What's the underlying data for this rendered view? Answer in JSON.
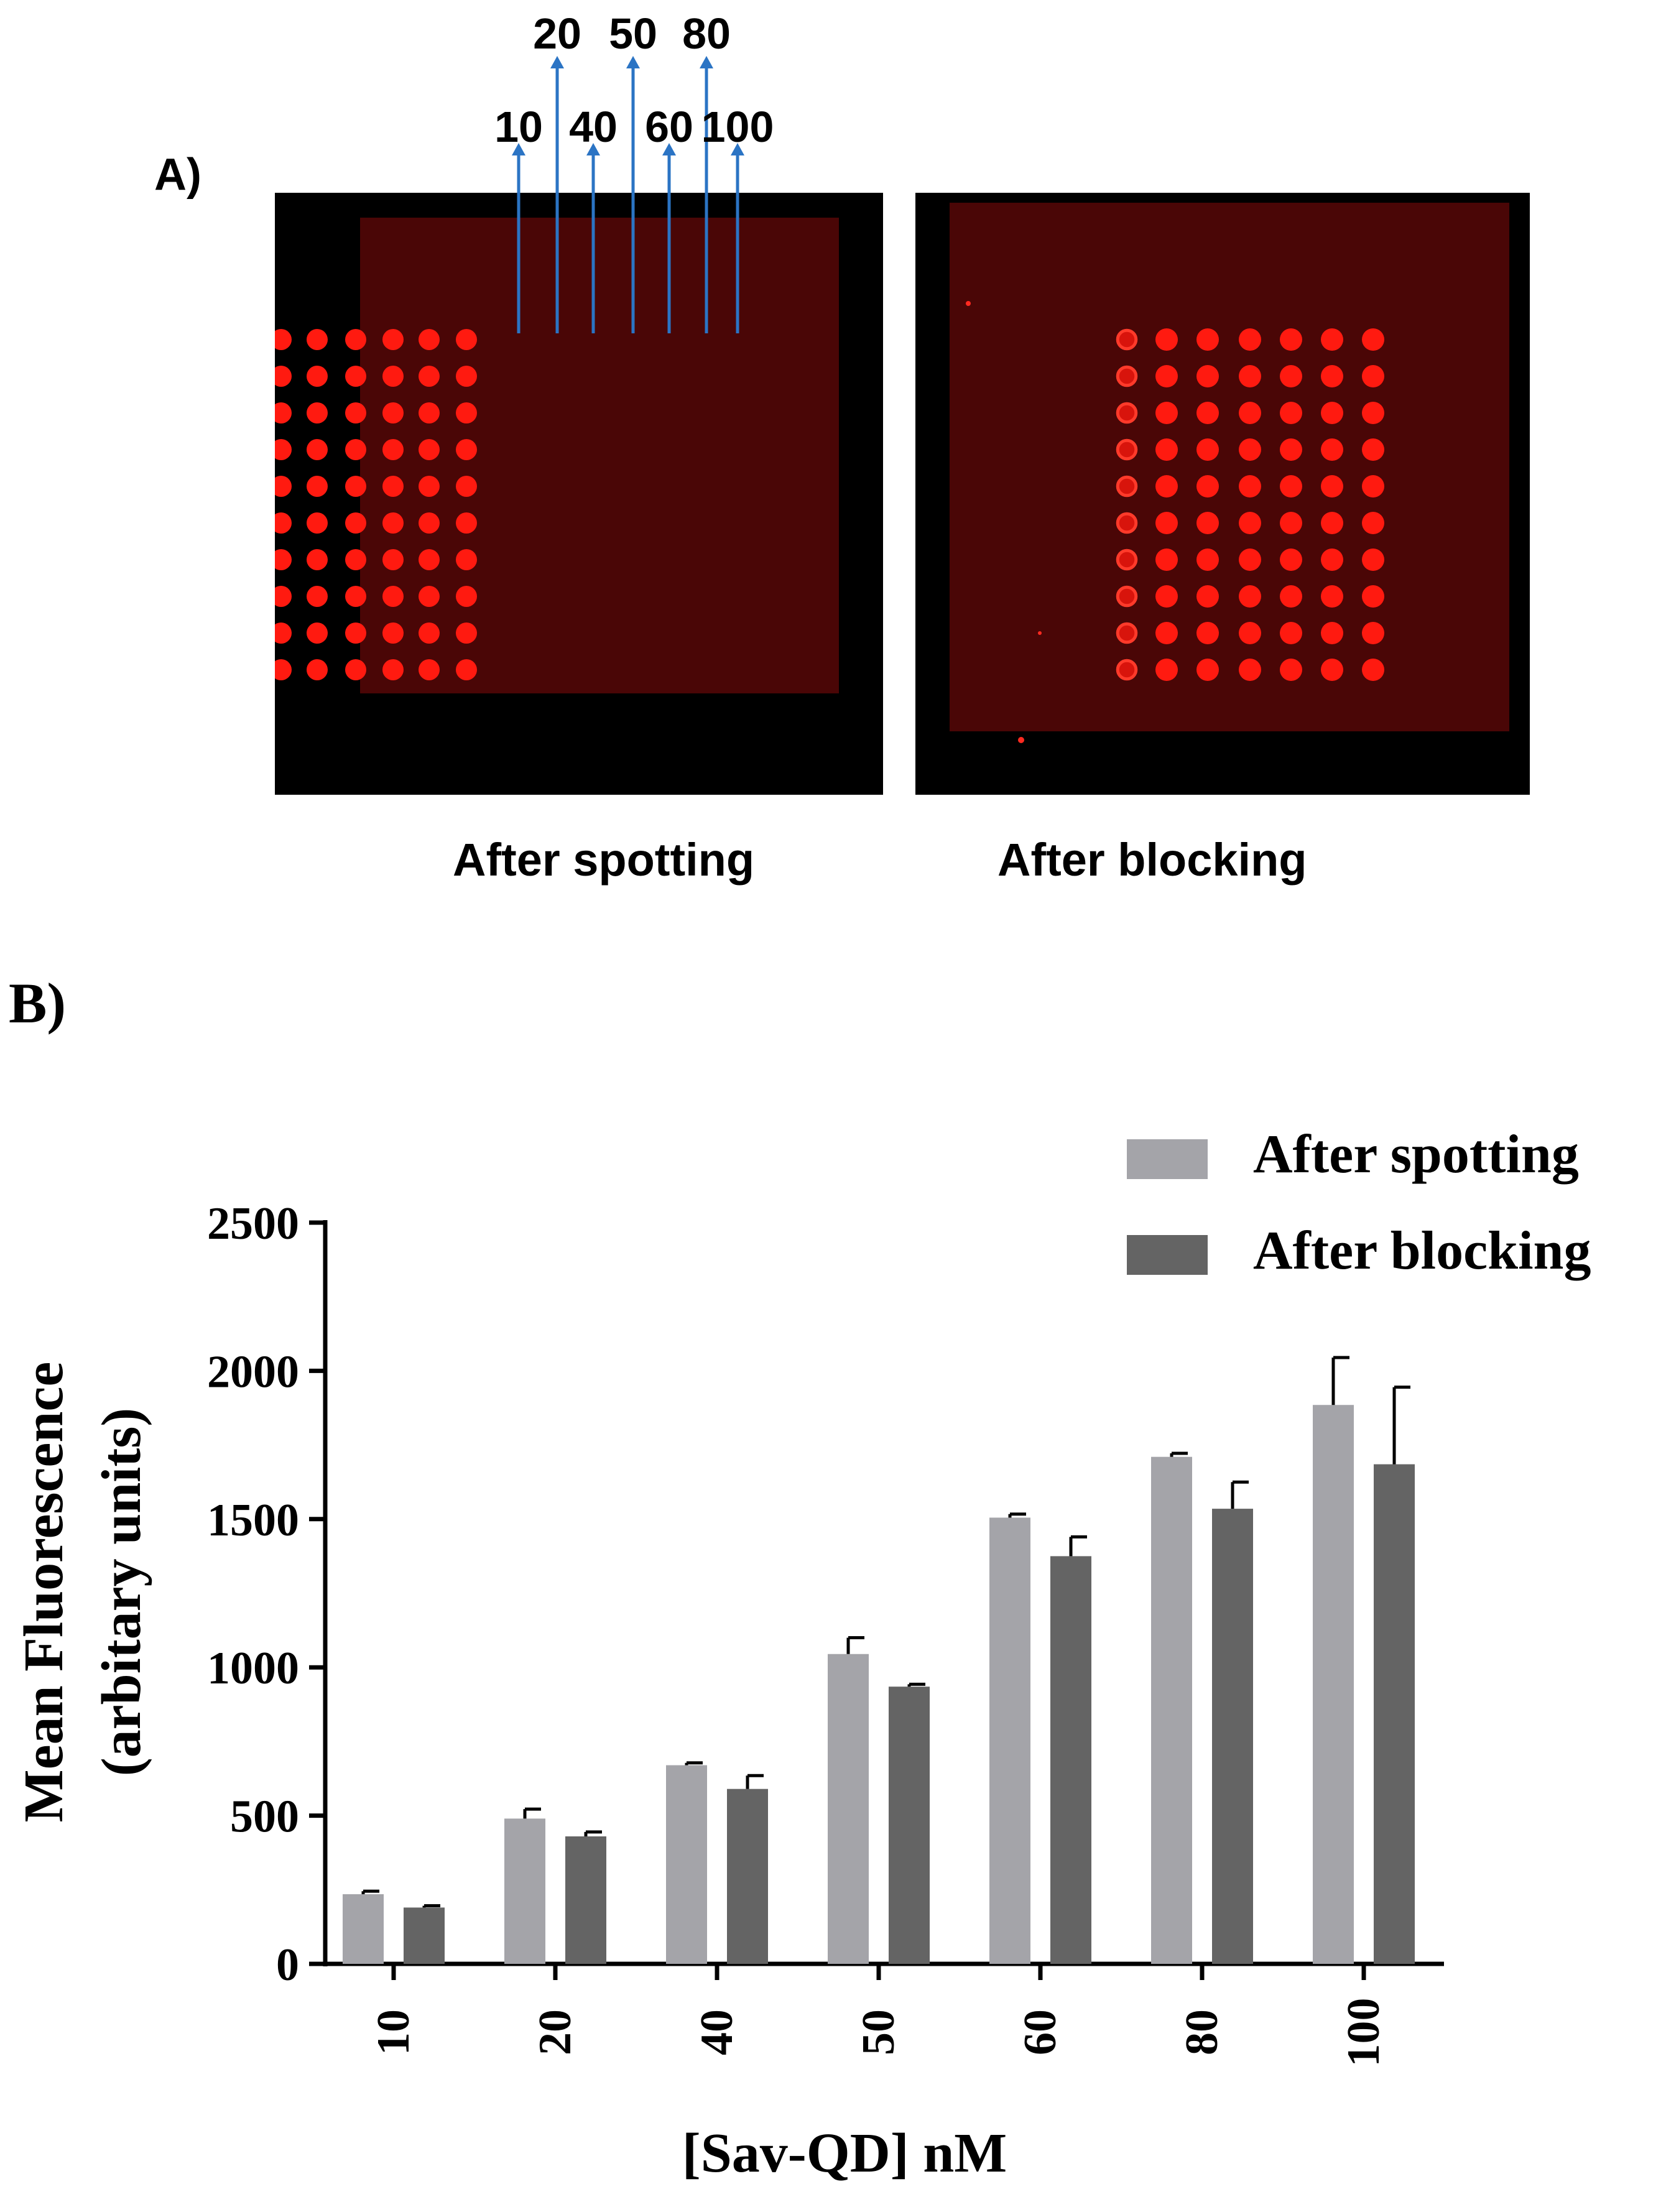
{
  "panel_a": {
    "label": "A)",
    "concentration_markers": [
      "10",
      "20",
      "40",
      "50",
      "60",
      "80",
      "100"
    ],
    "captions": [
      "After spotting",
      "After blocking"
    ],
    "spot_color": "#ff1a10",
    "substrate_color": "#4a0606",
    "arrow_color": "#2b74c4"
  },
  "panel_b": {
    "label": "B)"
  },
  "chart_data": {
    "type": "bar",
    "categories": [
      "10",
      "20",
      "40",
      "50",
      "60",
      "80",
      "100"
    ],
    "series": [
      {
        "name": "After spotting",
        "color": "#a4a4a9",
        "values": [
          235,
          490,
          670,
          1045,
          1505,
          1710,
          1885
        ],
        "error": [
          10,
          32,
          8,
          55,
          12,
          12,
          160
        ]
      },
      {
        "name": "After blocking",
        "color": "#646464",
        "values": [
          190,
          430,
          590,
          935,
          1375,
          1535,
          1685
        ],
        "error": [
          6,
          15,
          45,
          8,
          65,
          90,
          260
        ]
      }
    ],
    "xlabel": "[Sav-QD] nM",
    "ylabel": "Mean Fluorescence (arbitary units)",
    "ylabel_lines": [
      "Mean Fluorescence",
      "(arbitary units)"
    ],
    "ylim": [
      0,
      2500
    ],
    "yticks": [
      0,
      500,
      1000,
      1500,
      2000,
      2500
    ],
    "legend_position": "top-right",
    "grid": false
  }
}
